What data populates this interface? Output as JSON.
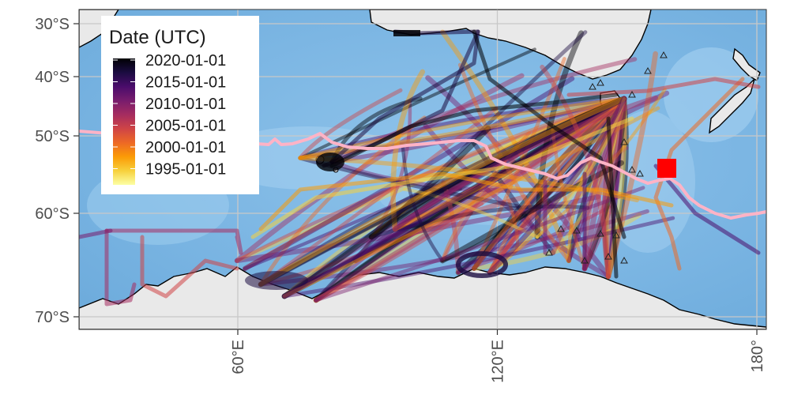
{
  "map": {
    "axes": {
      "y_ticks": [
        {
          "label": "30°S",
          "lat": -30
        },
        {
          "label": "40°S",
          "lat": -40
        },
        {
          "label": "50°S",
          "lat": -50
        },
        {
          "label": "60°S",
          "lat": -60
        },
        {
          "label": "70°S",
          "lat": -70
        }
      ],
      "x_ticks": [
        {
          "label": "60°E",
          "lon": 60
        },
        {
          "label": "120°E",
          "lon": 120
        },
        {
          "label": "180°",
          "lon": 180
        }
      ],
      "lon_range": [
        22,
        182
      ],
      "lat_range": [
        -72,
        -28
      ]
    },
    "legend": {
      "title": "Date (UTC)",
      "placement": "top-left",
      "labels": [
        "2020-01-01",
        "2015-01-01",
        "2010-01-01",
        "2005-01-01",
        "2000-01-01",
        "1995-01-01"
      ],
      "colormap": [
        "#000004",
        "#1b0c41",
        "#4a0c6b",
        "#781c6d",
        "#a52c60",
        "#cf4446",
        "#ed6925",
        "#fb9b06",
        "#f7d13d",
        "#fcffa4"
      ]
    },
    "colors": {
      "ocean": "#7fb9e6",
      "ocean_shallow": "#a9d2f0",
      "land": "#e6e6e6",
      "coast": "#000000",
      "front_line": "#ffb3c6",
      "marker": "#ff0000",
      "grid": "#c8c8c8"
    }
  }
}
